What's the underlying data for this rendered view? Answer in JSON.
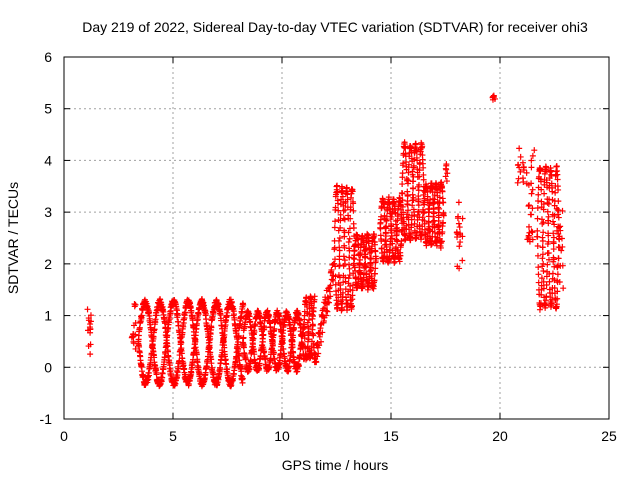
{
  "colors": {
    "points": "#ff0000",
    "grid": "#a0a0a0",
    "axis": "#000000"
  },
  "chart_data": {
    "type": "scatter",
    "title": "Day 219 of 2022, Sidereal Day-to-day VTEC variation (SDTVAR) for receiver ohi3",
    "xlabel": "GPS time / hours",
    "ylabel": "SDTVAR / TECUs",
    "xlim": [
      0,
      25
    ],
    "ylim": [
      -1,
      6
    ],
    "xticks": [
      0,
      5,
      10,
      15,
      20,
      25
    ],
    "yticks": [
      -1,
      0,
      1,
      2,
      3,
      4,
      5,
      6
    ],
    "grid": true,
    "marker": "+",
    "segments": [
      {
        "t": [
          1.08,
          1.25
        ],
        "y": [
          0.2,
          1.2
        ],
        "pattern": "vertical"
      },
      {
        "t": [
          3.1,
          3.3
        ],
        "y": [
          0.3,
          1.3
        ],
        "pattern": "vertical"
      },
      {
        "t": [
          3.4,
          8.2
        ],
        "y": [
          -0.4,
          1.35
        ],
        "pattern": "wave",
        "period": 1.3
      },
      {
        "t": [
          8.2,
          11.0
        ],
        "y": [
          -0.1,
          1.1
        ],
        "pattern": "wave",
        "period": 0.9
      },
      {
        "t": [
          11.0,
          11.5
        ],
        "y": [
          0.1,
          1.4
        ],
        "pattern": "wave",
        "period": 0.4
      },
      {
        "t": [
          11.5,
          12.4
        ],
        "y": [
          0.1,
          2.0
        ],
        "pattern": "rise"
      },
      {
        "t": [
          12.4,
          13.3
        ],
        "y": [
          1.0,
          3.6
        ],
        "pattern": "wave",
        "period": 0.45
      },
      {
        "t": [
          13.3,
          14.3
        ],
        "y": [
          1.5,
          2.6
        ],
        "pattern": "wave",
        "period": 0.5
      },
      {
        "t": [
          14.5,
          15.5
        ],
        "y": [
          2.0,
          3.3
        ],
        "pattern": "wave",
        "period": 0.5
      },
      {
        "t": [
          15.5,
          16.5
        ],
        "y": [
          2.4,
          4.4
        ],
        "pattern": "wave",
        "period": 0.5
      },
      {
        "t": [
          16.5,
          17.4
        ],
        "y": [
          2.3,
          3.6
        ],
        "pattern": "wave",
        "period": 0.45
      },
      {
        "t": [
          17.5,
          17.6
        ],
        "y": [
          3.6,
          4.1
        ],
        "pattern": "vertical"
      },
      {
        "t": [
          18.0,
          18.3
        ],
        "y": [
          1.9,
          3.2
        ],
        "pattern": "vertical"
      },
      {
        "t": [
          19.6,
          19.8
        ],
        "y": [
          5.1,
          5.3
        ],
        "pattern": "vertical"
      },
      {
        "t": [
          20.8,
          21.1
        ],
        "y": [
          3.5,
          4.5
        ],
        "pattern": "vertical"
      },
      {
        "t": [
          21.2,
          21.6
        ],
        "y": [
          2.4,
          4.2
        ],
        "pattern": "vertical"
      },
      {
        "t": [
          21.7,
          22.7
        ],
        "y": [
          1.0,
          4.0
        ],
        "pattern": "wave",
        "period": 0.5
      },
      {
        "t": [
          22.6,
          22.9
        ],
        "y": [
          1.5,
          3.1
        ],
        "pattern": "vertical"
      }
    ]
  }
}
